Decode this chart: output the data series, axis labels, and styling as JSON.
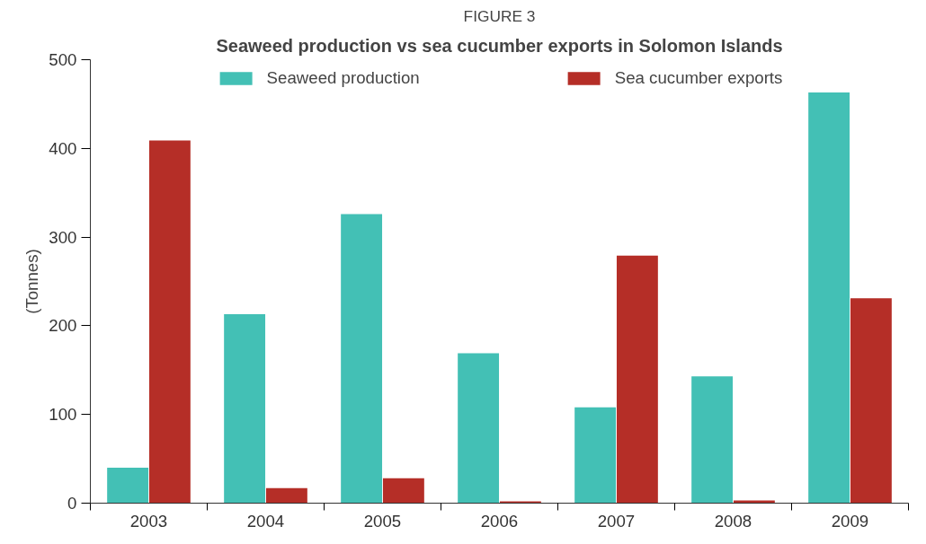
{
  "chart_data": {
    "type": "bar",
    "title": "FIGURE 3",
    "subtitle": "Seaweed production vs sea cucumber exports in Solomon Islands",
    "ylabel": "(Tonnes)",
    "categories": [
      "2003",
      "2004",
      "2005",
      "2006",
      "2007",
      "2008",
      "2009"
    ],
    "series": [
      {
        "name": "Seaweed production",
        "color": "#43c0b5",
        "values": [
          40,
          213,
          326,
          169,
          108,
          143,
          463
        ]
      },
      {
        "name": "Sea cucumber exports",
        "color": "#b52e27",
        "values": [
          409,
          17,
          28,
          2,
          279,
          3,
          231
        ]
      }
    ],
    "ylim": [
      0,
      500
    ],
    "yticks": [
      0,
      100,
      200,
      300,
      400,
      500
    ],
    "grid": false,
    "legend": "top"
  }
}
